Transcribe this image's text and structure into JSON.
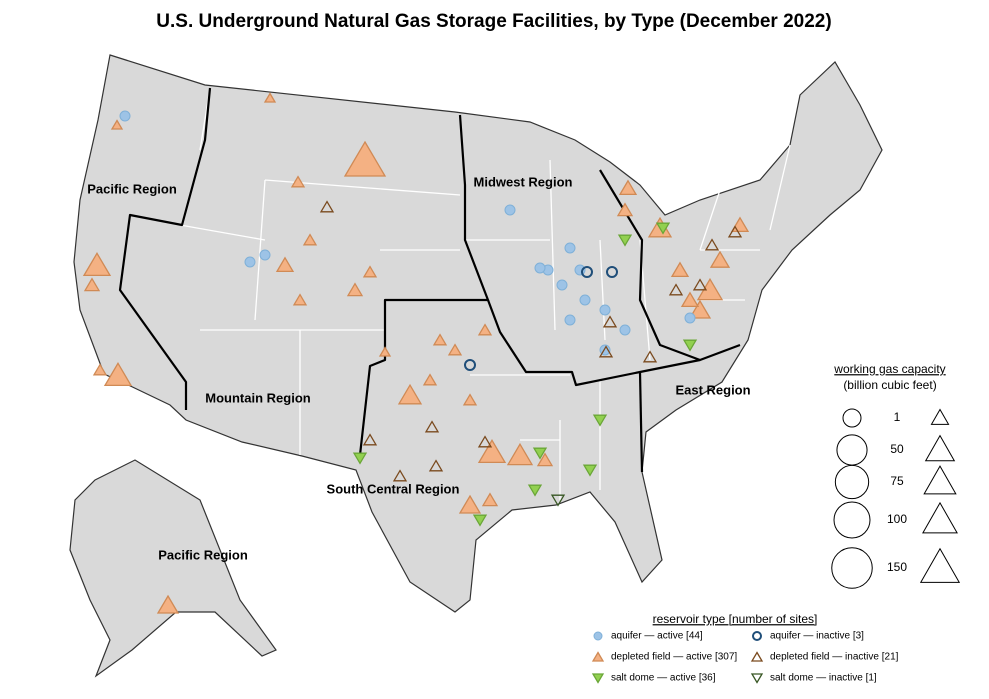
{
  "title": "U.S. Underground Natural Gas Storage Facilities, by Type (December 2022)",
  "regions": [
    "Pacific Region",
    "Midwest Region",
    "Mountain Region",
    "South Central Region",
    "East Region",
    "Pacific Region"
  ],
  "size_legend": {
    "title": "working gas capacity",
    "subtitle": "(billion cubic feet)",
    "sizes": [
      1,
      50,
      75,
      100,
      150
    ]
  },
  "type_legend": {
    "title": "reservoir type [number of sites]",
    "items": [
      "aquifer — active [44]",
      "aquifer — inactive [3]",
      "depleted field — active [307]",
      "depleted field — inactive [21]",
      "salt dome — active [36]",
      "salt dome — inactive [1]"
    ]
  }
}
